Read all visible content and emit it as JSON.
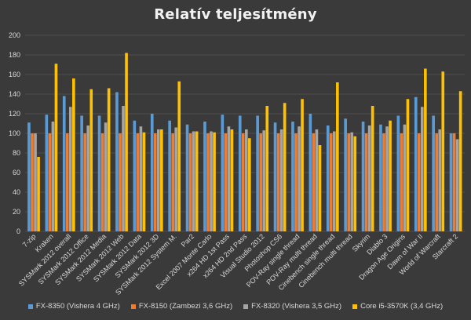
{
  "chart_data": {
    "type": "bar",
    "title": "Relatív teljesítmény",
    "xlabel": "",
    "ylabel": "",
    "ylim": [
      0,
      200
    ],
    "yticks": [
      0,
      20,
      40,
      60,
      80,
      100,
      120,
      140,
      160,
      180,
      200
    ],
    "grid": true,
    "legend_position": "bottom",
    "categories": [
      "7-zip",
      "Kraken",
      "SYSMark 2012 overall",
      "SYSMark 2012 Office",
      "SYSMark 2012 Media",
      "SYSMark 2012 Web",
      "SYSMark 2012 Data",
      "SYSMark 2012 3D",
      "SYSMark 2012 System M.",
      "Par2",
      "Excel 2007 Monte Carlo",
      "x264 HD 1st Pass",
      "x264 HD 2nd Pass",
      "Visual Studio 2012",
      "Photoshop CS6",
      "POV-Ray single thread",
      "POV-Ray multi thread",
      "Cinebench single thread",
      "Cinebench multi thread",
      "Skyrim",
      "Diablo 3",
      "Dragon Age Origins",
      "Dawn of War II",
      "World of Warcraft",
      "Starcraft 2"
    ],
    "series": [
      {
        "name": "FX-8350 (Vishera 4 GHz)",
        "color": "#5b9bd5",
        "values": [
          111,
          119,
          138,
          118,
          118,
          142,
          113,
          120,
          113,
          109,
          112,
          119,
          118,
          118,
          111,
          112,
          120,
          108,
          115,
          112,
          109,
          118,
          137,
          118,
          100
        ]
      },
      {
        "name": "FX-8150 (Zambezi 3,6 GHz)",
        "color": "#ed7d31",
        "values": [
          100,
          100,
          100,
          100,
          100,
          100,
          100,
          100,
          100,
          100,
          100,
          100,
          100,
          100,
          100,
          100,
          100,
          100,
          100,
          100,
          100,
          100,
          100,
          100,
          100
        ]
      },
      {
        "name": "FX-8320 (Vishera 3,5 GHz)",
        "color": "#a5a5a5",
        "values": [
          100,
          112,
          127,
          108,
          111,
          128,
          107,
          104,
          106,
          102,
          102,
          107,
          104,
          103,
          104,
          107,
          104,
          102,
          101,
          108,
          107,
          109,
          127,
          104,
          94
        ]
      },
      {
        "name": "Core i5-3570K (3,4 GHz)",
        "color": "#ffc000",
        "values": [
          76,
          171,
          156,
          145,
          146,
          182,
          101,
          104,
          153,
          102,
          101,
          104,
          95,
          128,
          131,
          135,
          88,
          152,
          97,
          128,
          113,
          135,
          166,
          163,
          143
        ]
      }
    ]
  }
}
